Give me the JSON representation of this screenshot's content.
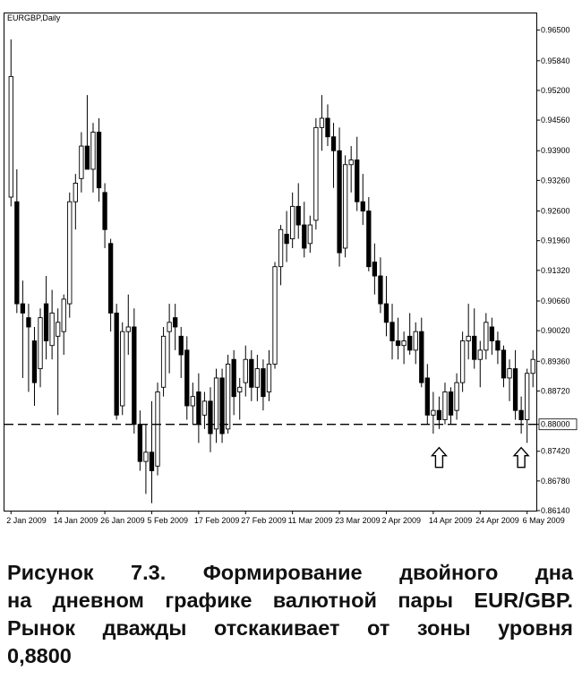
{
  "chart_data": {
    "type": "candlestick",
    "title": "EURGBP,Daily",
    "ylim": [
      0.8614,
      0.9686
    ],
    "y_ticks": [
      "0.96500",
      "0.95840",
      "0.95200",
      "0.94560",
      "0.93900",
      "0.93260",
      "0.92600",
      "0.91960",
      "0.91320",
      "0.90660",
      "0.90020",
      "0.89360",
      "0.88720",
      "0.88000",
      "0.87420",
      "0.86780",
      "0.86140"
    ],
    "x_ticks": [
      {
        "label": "2 Jan 2009",
        "index": 0
      },
      {
        "label": "14 Jan 2009",
        "index": 8
      },
      {
        "label": "26 Jan 2009",
        "index": 16
      },
      {
        "label": "5 Feb 2009",
        "index": 24
      },
      {
        "label": "17 Feb 2009",
        "index": 32
      },
      {
        "label": "27 Feb 2009",
        "index": 40
      },
      {
        "label": "11 Mar 2009",
        "index": 48
      },
      {
        "label": "23 Mar 2009",
        "index": 56
      },
      {
        "label": "2 Apr 2009",
        "index": 64
      },
      {
        "label": "14 Apr 2009",
        "index": 72
      },
      {
        "label": "24 Apr 2009",
        "index": 80
      },
      {
        "label": "6 May 2009",
        "index": 88
      }
    ],
    "level_line": {
      "value": 0.88,
      "label": "0.88000",
      "style": "dashed"
    },
    "arrows": [
      {
        "index": 73,
        "direction": "up"
      },
      {
        "index": 87,
        "direction": "up"
      }
    ],
    "candles": [
      {
        "o": 0.929,
        "h": 0.963,
        "l": 0.927,
        "c": 0.955
      },
      {
        "o": 0.928,
        "h": 0.935,
        "l": 0.904,
        "c": 0.906
      },
      {
        "o": 0.906,
        "h": 0.911,
        "l": 0.89,
        "c": 0.904
      },
      {
        "o": 0.903,
        "h": 0.906,
        "l": 0.887,
        "c": 0.901
      },
      {
        "o": 0.898,
        "h": 0.901,
        "l": 0.884,
        "c": 0.889
      },
      {
        "o": 0.892,
        "h": 0.905,
        "l": 0.888,
        "c": 0.903
      },
      {
        "o": 0.906,
        "h": 0.912,
        "l": 0.894,
        "c": 0.898
      },
      {
        "o": 0.897,
        "h": 0.909,
        "l": 0.894,
        "c": 0.904
      },
      {
        "o": 0.899,
        "h": 0.905,
        "l": 0.882,
        "c": 0.902
      },
      {
        "o": 0.9,
        "h": 0.908,
        "l": 0.895,
        "c": 0.907
      },
      {
        "o": 0.906,
        "h": 0.93,
        "l": 0.903,
        "c": 0.928
      },
      {
        "o": 0.928,
        "h": 0.934,
        "l": 0.922,
        "c": 0.932
      },
      {
        "o": 0.933,
        "h": 0.943,
        "l": 0.93,
        "c": 0.94
      },
      {
        "o": 0.94,
        "h": 0.951,
        "l": 0.935,
        "c": 0.935
      },
      {
        "o": 0.935,
        "h": 0.945,
        "l": 0.93,
        "c": 0.943
      },
      {
        "o": 0.943,
        "h": 0.946,
        "l": 0.928,
        "c": 0.931
      },
      {
        "o": 0.93,
        "h": 0.932,
        "l": 0.918,
        "c": 0.922
      },
      {
        "o": 0.919,
        "h": 0.92,
        "l": 0.9,
        "c": 0.904
      },
      {
        "o": 0.904,
        "h": 0.906,
        "l": 0.881,
        "c": 0.882
      },
      {
        "o": 0.884,
        "h": 0.902,
        "l": 0.882,
        "c": 0.9
      },
      {
        "o": 0.9,
        "h": 0.908,
        "l": 0.895,
        "c": 0.901
      },
      {
        "o": 0.901,
        "h": 0.905,
        "l": 0.878,
        "c": 0.88
      },
      {
        "o": 0.88,
        "h": 0.883,
        "l": 0.87,
        "c": 0.872
      },
      {
        "o": 0.872,
        "h": 0.88,
        "l": 0.865,
        "c": 0.874
      },
      {
        "o": 0.874,
        "h": 0.885,
        "l": 0.863,
        "c": 0.87
      },
      {
        "o": 0.871,
        "h": 0.889,
        "l": 0.869,
        "c": 0.887
      },
      {
        "o": 0.888,
        "h": 0.901,
        "l": 0.886,
        "c": 0.899
      },
      {
        "o": 0.9,
        "h": 0.906,
        "l": 0.891,
        "c": 0.902
      },
      {
        "o": 0.903,
        "h": 0.906,
        "l": 0.896,
        "c": 0.901
      },
      {
        "o": 0.899,
        "h": 0.901,
        "l": 0.89,
        "c": 0.895
      },
      {
        "o": 0.896,
        "h": 0.899,
        "l": 0.881,
        "c": 0.884
      },
      {
        "o": 0.884,
        "h": 0.889,
        "l": 0.88,
        "c": 0.886
      },
      {
        "o": 0.887,
        "h": 0.891,
        "l": 0.876,
        "c": 0.88
      },
      {
        "o": 0.882,
        "h": 0.887,
        "l": 0.879,
        "c": 0.885
      },
      {
        "o": 0.885,
        "h": 0.888,
        "l": 0.874,
        "c": 0.878
      },
      {
        "o": 0.879,
        "h": 0.892,
        "l": 0.876,
        "c": 0.89
      },
      {
        "o": 0.89,
        "h": 0.892,
        "l": 0.876,
        "c": 0.878
      },
      {
        "o": 0.879,
        "h": 0.895,
        "l": 0.878,
        "c": 0.893
      },
      {
        "o": 0.894,
        "h": 0.896,
        "l": 0.882,
        "c": 0.886
      },
      {
        "o": 0.887,
        "h": 0.89,
        "l": 0.881,
        "c": 0.888
      },
      {
        "o": 0.889,
        "h": 0.897,
        "l": 0.886,
        "c": 0.894
      },
      {
        "o": 0.894,
        "h": 0.896,
        "l": 0.885,
        "c": 0.888
      },
      {
        "o": 0.888,
        "h": 0.895,
        "l": 0.885,
        "c": 0.892
      },
      {
        "o": 0.892,
        "h": 0.894,
        "l": 0.883,
        "c": 0.886
      },
      {
        "o": 0.887,
        "h": 0.896,
        "l": 0.885,
        "c": 0.893
      },
      {
        "o": 0.893,
        "h": 0.915,
        "l": 0.892,
        "c": 0.914
      },
      {
        "o": 0.914,
        "h": 0.923,
        "l": 0.91,
        "c": 0.922
      },
      {
        "o": 0.921,
        "h": 0.926,
        "l": 0.915,
        "c": 0.919
      },
      {
        "o": 0.92,
        "h": 0.93,
        "l": 0.918,
        "c": 0.927
      },
      {
        "o": 0.927,
        "h": 0.932,
        "l": 0.92,
        "c": 0.923
      },
      {
        "o": 0.923,
        "h": 0.928,
        "l": 0.916,
        "c": 0.918
      },
      {
        "o": 0.919,
        "h": 0.925,
        "l": 0.917,
        "c": 0.923
      },
      {
        "o": 0.924,
        "h": 0.946,
        "l": 0.922,
        "c": 0.944
      },
      {
        "o": 0.944,
        "h": 0.951,
        "l": 0.939,
        "c": 0.946
      },
      {
        "o": 0.946,
        "h": 0.949,
        "l": 0.94,
        "c": 0.942
      },
      {
        "o": 0.942,
        "h": 0.945,
        "l": 0.931,
        "c": 0.939
      },
      {
        "o": 0.939,
        "h": 0.944,
        "l": 0.914,
        "c": 0.917
      },
      {
        "o": 0.918,
        "h": 0.938,
        "l": 0.916,
        "c": 0.936
      },
      {
        "o": 0.936,
        "h": 0.94,
        "l": 0.93,
        "c": 0.937
      },
      {
        "o": 0.937,
        "h": 0.942,
        "l": 0.926,
        "c": 0.928
      },
      {
        "o": 0.928,
        "h": 0.934,
        "l": 0.923,
        "c": 0.926
      },
      {
        "o": 0.926,
        "h": 0.929,
        "l": 0.913,
        "c": 0.914
      },
      {
        "o": 0.915,
        "h": 0.919,
        "l": 0.908,
        "c": 0.912
      },
      {
        "o": 0.912,
        "h": 0.916,
        "l": 0.904,
        "c": 0.906
      },
      {
        "o": 0.906,
        "h": 0.912,
        "l": 0.899,
        "c": 0.902
      },
      {
        "o": 0.902,
        "h": 0.906,
        "l": 0.894,
        "c": 0.898
      },
      {
        "o": 0.898,
        "h": 0.903,
        "l": 0.894,
        "c": 0.897
      },
      {
        "o": 0.897,
        "h": 0.9,
        "l": 0.893,
        "c": 0.898
      },
      {
        "o": 0.899,
        "h": 0.904,
        "l": 0.895,
        "c": 0.896
      },
      {
        "o": 0.896,
        "h": 0.902,
        "l": 0.893,
        "c": 0.9
      },
      {
        "o": 0.9,
        "h": 0.903,
        "l": 0.888,
        "c": 0.889
      },
      {
        "o": 0.89,
        "h": 0.893,
        "l": 0.88,
        "c": 0.882
      },
      {
        "o": 0.882,
        "h": 0.887,
        "l": 0.878,
        "c": 0.883
      },
      {
        "o": 0.883,
        "h": 0.886,
        "l": 0.879,
        "c": 0.881
      },
      {
        "o": 0.881,
        "h": 0.889,
        "l": 0.88,
        "c": 0.887
      },
      {
        "o": 0.887,
        "h": 0.888,
        "l": 0.88,
        "c": 0.882
      },
      {
        "o": 0.883,
        "h": 0.891,
        "l": 0.881,
        "c": 0.889
      },
      {
        "o": 0.889,
        "h": 0.9,
        "l": 0.887,
        "c": 0.898
      },
      {
        "o": 0.898,
        "h": 0.906,
        "l": 0.894,
        "c": 0.899
      },
      {
        "o": 0.899,
        "h": 0.905,
        "l": 0.892,
        "c": 0.894
      },
      {
        "o": 0.894,
        "h": 0.898,
        "l": 0.888,
        "c": 0.896
      },
      {
        "o": 0.896,
        "h": 0.904,
        "l": 0.894,
        "c": 0.902
      },
      {
        "o": 0.901,
        "h": 0.903,
        "l": 0.895,
        "c": 0.898
      },
      {
        "o": 0.898,
        "h": 0.9,
        "l": 0.893,
        "c": 0.896
      },
      {
        "o": 0.896,
        "h": 0.897,
        "l": 0.888,
        "c": 0.89
      },
      {
        "o": 0.89,
        "h": 0.894,
        "l": 0.885,
        "c": 0.892
      },
      {
        "o": 0.892,
        "h": 0.896,
        "l": 0.881,
        "c": 0.883
      },
      {
        "o": 0.883,
        "h": 0.886,
        "l": 0.878,
        "c": 0.881
      },
      {
        "o": 0.881,
        "h": 0.892,
        "l": 0.876,
        "c": 0.891
      },
      {
        "o": 0.891,
        "h": 0.896,
        "l": 0.888,
        "c": 0.894
      }
    ]
  },
  "caption": {
    "line1": "Рисунок 7.3. Формирование двойного дна",
    "line2": "на дневном графике валютной пары EUR/GBP.",
    "line3": "Рынок дважды отскакивает от зоны уровня",
    "line4": "0,8800"
  }
}
